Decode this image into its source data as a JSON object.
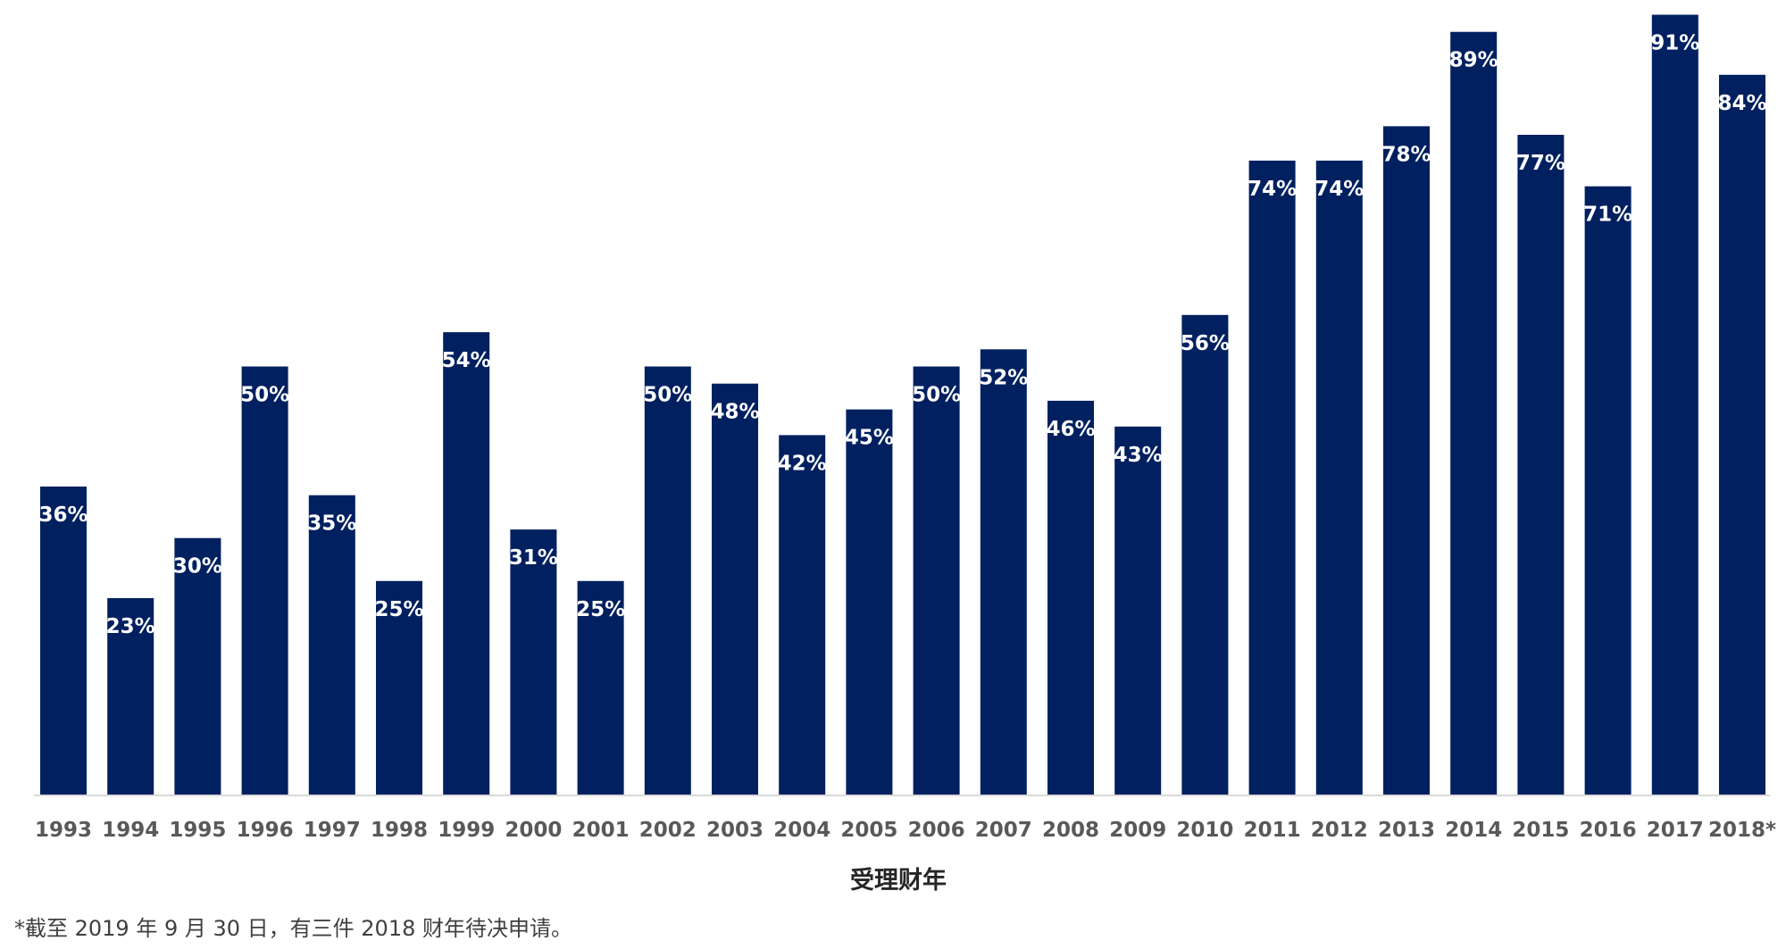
{
  "chart_data": {
    "type": "bar",
    "categories": [
      "1993",
      "1994",
      "1995",
      "1996",
      "1997",
      "1998",
      "1999",
      "2000",
      "2001",
      "2002",
      "2003",
      "2004",
      "2005",
      "2006",
      "2007",
      "2008",
      "2009",
      "2010",
      "2011",
      "2012",
      "2013",
      "2014",
      "2015",
      "2016",
      "2017",
      "2018*"
    ],
    "values": [
      36,
      23,
      30,
      50,
      35,
      25,
      54,
      31,
      25,
      50,
      48,
      42,
      45,
      50,
      52,
      46,
      43,
      56,
      74,
      74,
      78,
      89,
      77,
      71,
      91,
      84
    ],
    "value_suffix": "%",
    "title": "",
    "xlabel": "受理财年",
    "ylabel": "",
    "ylim": [
      0,
      92
    ],
    "grid": false,
    "legend": "none",
    "bar_color": "#002060",
    "label_color": "#ffffff"
  },
  "footnote": "*截至 2019 年 9 月 30 日，有三件 2018 财年待决申请。"
}
